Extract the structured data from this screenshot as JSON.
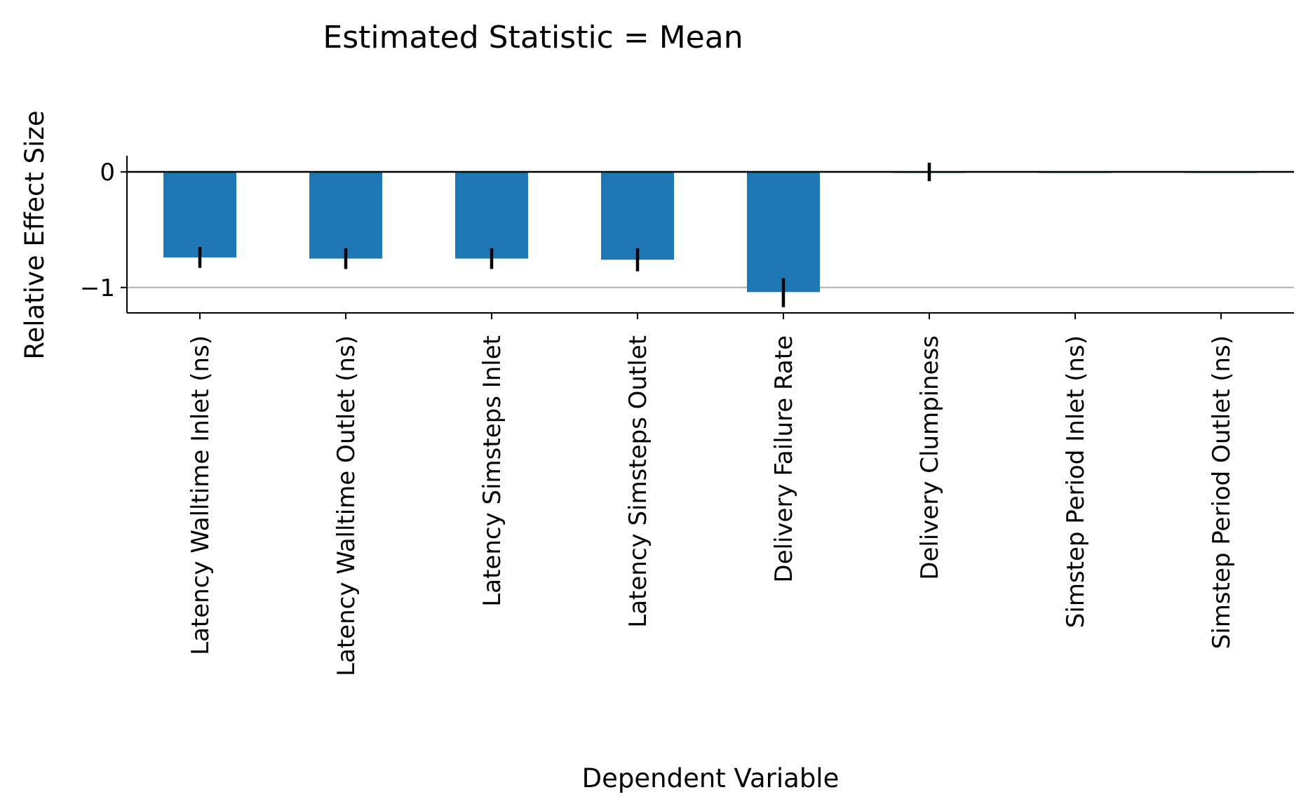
{
  "chart_data": {
    "type": "bar",
    "title": "Estimated Statistic = Mean",
    "xlabel": "Dependent Variable",
    "ylabel": "Relative Effect Size",
    "ylim": [
      -1.22,
      0.14
    ],
    "yticks": [
      0,
      -1
    ],
    "ytick_labels": [
      "0",
      "−1"
    ],
    "grid": "horizontal at ticks",
    "categories": [
      "Latency Walltime Inlet (ns)",
      "Latency Walltime Outlet (ns)",
      "Latency Simsteps Inlet",
      "Latency Simsteps Outlet",
      "Delivery Failure Rate",
      "Delivery Clumpiness",
      "Simstep Period Inlet (ns)",
      "Simstep Period Outlet (ns)"
    ],
    "values": [
      -0.74,
      -0.75,
      -0.75,
      -0.76,
      -1.04,
      0.0,
      -0.003,
      -0.003
    ],
    "error_low": [
      -0.83,
      -0.84,
      -0.84,
      -0.86,
      -1.17,
      -0.08,
      -0.005,
      -0.005
    ],
    "error_high": [
      -0.65,
      -0.66,
      -0.66,
      -0.66,
      -0.92,
      0.08,
      -0.001,
      -0.001
    ],
    "colors": {
      "bar": "#1f77b4",
      "error": "#000000",
      "grid": "#b0b0b0",
      "axis": "#000000"
    }
  }
}
